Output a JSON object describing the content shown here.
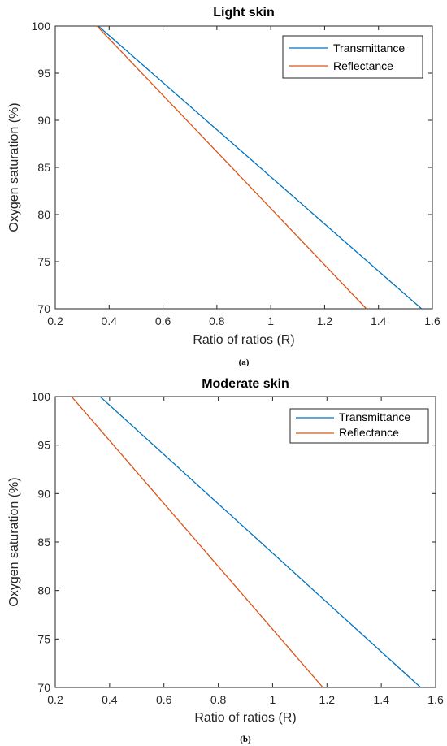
{
  "chart_data": [
    {
      "type": "line",
      "title": "Light skin",
      "xlabel": "Ratio of ratios (R)",
      "ylabel": "Oxygen saturation (%)",
      "caption": "(a)",
      "xlim": [
        0.2,
        1.6
      ],
      "ylim": [
        70,
        100
      ],
      "xticks": [
        0.2,
        0.4,
        0.6,
        0.8,
        1,
        1.2,
        1.4,
        1.6
      ],
      "yticks": [
        70,
        75,
        80,
        85,
        90,
        95,
        100
      ],
      "legend_position": "top-right",
      "grid": false,
      "series": [
        {
          "name": "Transmittance",
          "color": "#0072BD",
          "x": [
            0.36,
            1.56
          ],
          "y": [
            100,
            70
          ]
        },
        {
          "name": "Reflectance",
          "color": "#D95319",
          "x": [
            0.355,
            1.355
          ],
          "y": [
            100,
            70
          ]
        }
      ]
    },
    {
      "type": "line",
      "title": "Moderate skin",
      "xlabel": "Ratio of ratios (R)",
      "ylabel": "Oxygen saturation (%)",
      "caption": "(b)",
      "xlim": [
        0.2,
        1.6
      ],
      "ylim": [
        70,
        100
      ],
      "xticks": [
        0.2,
        0.4,
        0.6,
        0.8,
        1,
        1.2,
        1.4,
        1.6
      ],
      "yticks": [
        70,
        75,
        80,
        85,
        90,
        95,
        100
      ],
      "legend_position": "top-right",
      "grid": false,
      "series": [
        {
          "name": "Transmittance",
          "color": "#0072BD",
          "x": [
            0.365,
            1.545
          ],
          "y": [
            100,
            70
          ]
        },
        {
          "name": "Reflectance",
          "color": "#D95319",
          "x": [
            0.26,
            1.185
          ],
          "y": [
            100,
            70
          ]
        }
      ]
    }
  ]
}
